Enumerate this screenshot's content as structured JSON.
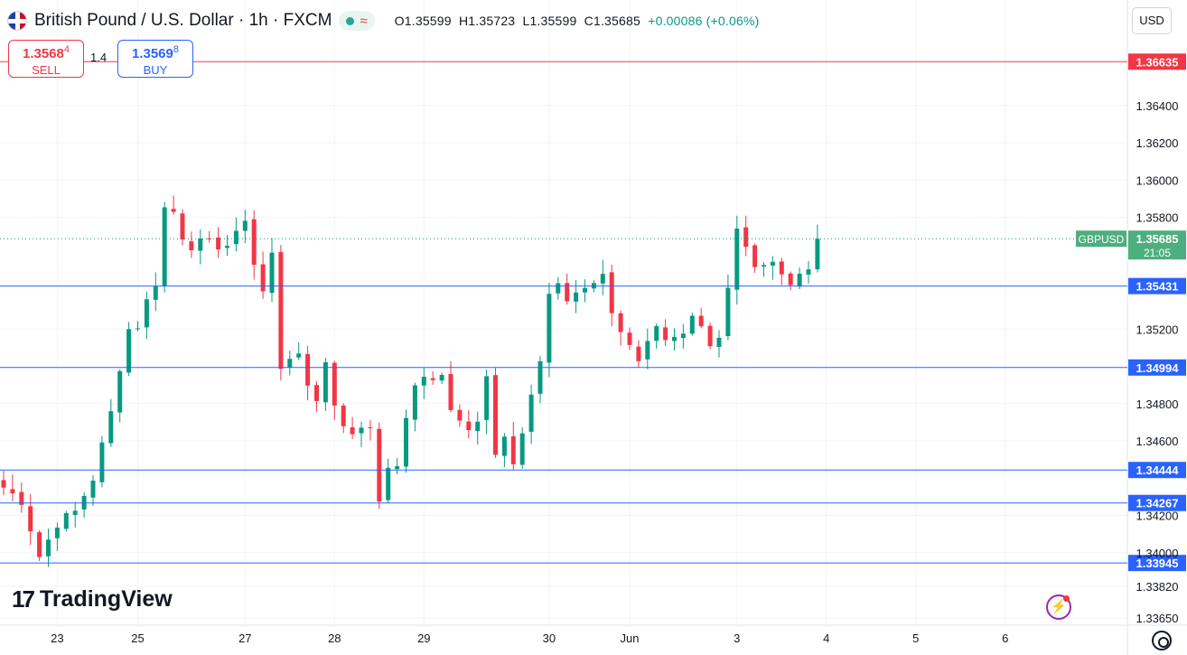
{
  "header": {
    "symbol_title": "British Pound / U.S. Dollar · 1h · FXCM",
    "ohlc": {
      "o": "O1.35599",
      "h": "H1.35723",
      "l": "L1.35599",
      "c": "C1.35685",
      "change": "+0.00086 (+0.06%)"
    },
    "status_icon": "market-open-dot",
    "wave_icon": "≈"
  },
  "trade": {
    "sell_price_main": "1.3568",
    "sell_price_sup": "4",
    "sell_label": "SELL",
    "spread": "1.4",
    "buy_price_main": "1.3569",
    "buy_price_sup": "8",
    "buy_label": "BUY"
  },
  "currency_button": "USD",
  "logo_text": "TradingView",
  "colors": {
    "up": "#089981",
    "down": "#f23645",
    "support_line": "#2962ff",
    "resistance_line": "#f23645",
    "grid": "#f0f3fa"
  },
  "chart_data": {
    "type": "candlestick",
    "symbol": "GBPUSD",
    "interval": "1h",
    "y_axis": {
      "ticks": [
        "1.36400",
        "1.36200",
        "1.36000",
        "1.35800",
        "1.35200",
        "1.34800",
        "1.34600",
        "1.34200",
        "1.34000",
        "1.33820",
        "1.33650"
      ],
      "tick_values": [
        1.364,
        1.362,
        1.36,
        1.358,
        1.352,
        1.348,
        1.346,
        1.342,
        1.34,
        1.3382,
        1.3365
      ],
      "range": [
        1.3365,
        1.3684
      ]
    },
    "x_axis": {
      "labels": [
        "23",
        "25",
        "27",
        "28",
        "29",
        "30",
        "Jun",
        "3",
        "4",
        "5",
        "6"
      ],
      "label_bars": [
        6,
        15,
        27,
        37,
        47,
        61,
        70,
        82,
        92,
        102,
        112
      ]
    },
    "current_price": {
      "label": "GBPUSD",
      "price": "1.35685",
      "countdown": "21:05",
      "value": 1.35685
    },
    "horizontal_levels": [
      {
        "price": "1.36635",
        "value": 1.36635,
        "kind": "resistance"
      },
      {
        "price": "1.35431",
        "value": 1.35431,
        "kind": "support"
      },
      {
        "price": "1.34994",
        "value": 1.34994,
        "kind": "support"
      },
      {
        "price": "1.34444",
        "value": 1.34444,
        "kind": "support"
      },
      {
        "price": "1.34267",
        "value": 1.34267,
        "kind": "support"
      },
      {
        "price": "1.33945",
        "value": 1.33945,
        "kind": "support"
      }
    ],
    "close_path": [
      [
        0,
        1.3435
      ],
      [
        2,
        1.3428
      ],
      [
        4,
        1.3398
      ],
      [
        6,
        1.3416
      ],
      [
        8,
        1.3422
      ],
      [
        10,
        1.344
      ],
      [
        12,
        1.3475
      ],
      [
        13,
        1.35
      ],
      [
        14,
        1.352
      ],
      [
        15,
        1.3522
      ],
      [
        16,
        1.3535
      ],
      [
        17,
        1.3545
      ],
      [
        18,
        1.3585
      ],
      [
        19,
        1.3583
      ],
      [
        20,
        1.357
      ],
      [
        21,
        1.3565
      ],
      [
        22,
        1.3566
      ],
      [
        24,
        1.3565
      ],
      [
        25,
        1.3565
      ],
      [
        26,
        1.357
      ],
      [
        27,
        1.358
      ],
      [
        28,
        1.3555
      ],
      [
        29,
        1.354
      ],
      [
        30,
        1.356
      ],
      [
        31,
        1.35
      ],
      [
        32,
        1.3506
      ],
      [
        33,
        1.3504
      ],
      [
        34,
        1.349
      ],
      [
        35,
        1.3483
      ],
      [
        36,
        1.3502
      ],
      [
        37,
        1.348
      ],
      [
        38,
        1.347
      ],
      [
        39,
        1.3462
      ],
      [
        40,
        1.3468
      ],
      [
        41,
        1.3468
      ],
      [
        42,
        1.343
      ],
      [
        43,
        1.3443
      ],
      [
        44,
        1.3448
      ],
      [
        45,
        1.347
      ],
      [
        46,
        1.349
      ],
      [
        47,
        1.3496
      ],
      [
        48,
        1.3492
      ],
      [
        49,
        1.3496
      ],
      [
        50,
        1.3475
      ],
      [
        51,
        1.347
      ],
      [
        52,
        1.3468
      ],
      [
        53,
        1.3472
      ],
      [
        54,
        1.3495
      ],
      [
        55,
        1.3455
      ],
      [
        56,
        1.3465
      ],
      [
        57,
        1.3448
      ],
      [
        58,
        1.3463
      ],
      [
        59,
        1.3484
      ],
      [
        60,
        1.35
      ],
      [
        61,
        1.354
      ],
      [
        62,
        1.3545
      ],
      [
        63,
        1.3535
      ],
      [
        64,
        1.354
      ],
      [
        65,
        1.354
      ],
      [
        66,
        1.3545
      ],
      [
        67,
        1.355
      ],
      [
        68,
        1.353
      ],
      [
        69,
        1.352
      ],
      [
        70,
        1.351
      ],
      [
        71,
        1.3505
      ],
      [
        72,
        1.3515
      ],
      [
        73,
        1.352
      ],
      [
        74,
        1.3512
      ],
      [
        75,
        1.3513
      ],
      [
        76,
        1.3515
      ],
      [
        77,
        1.3525
      ],
      [
        78,
        1.352
      ],
      [
        79,
        1.351
      ],
      [
        80,
        1.3515
      ],
      [
        81,
        1.3545
      ],
      [
        82,
        1.3575
      ],
      [
        83,
        1.3565
      ],
      [
        84,
        1.3555
      ],
      [
        85,
        1.3555
      ],
      [
        86,
        1.3555
      ],
      [
        87,
        1.3548
      ],
      [
        88,
        1.3545
      ],
      [
        89,
        1.3547
      ],
      [
        90,
        1.3555
      ],
      [
        91,
        1.3568
      ]
    ],
    "grid": true
  }
}
